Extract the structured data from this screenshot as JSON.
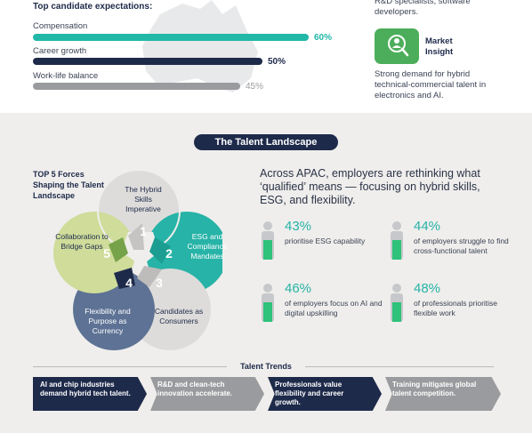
{
  "expectations": {
    "title": "Top candidate expectations:",
    "items": [
      {
        "label": "Compensation",
        "value": 60,
        "display": "60%",
        "color": "#22b8a8"
      },
      {
        "label": "Career growth",
        "value": 50,
        "display": "50%",
        "color": "#1e2a4a"
      },
      {
        "label": "Work-life balance",
        "value": 45,
        "display": "45%",
        "color": "#9a9b9e"
      }
    ]
  },
  "roles_text": "R&D specialists, software developers.",
  "market_insight": {
    "title": "Market Insight",
    "text": "Strong demand for hybrid technical-commercial talent in electronics and AI.",
    "icon": "person-magnifier-icon"
  },
  "landscape": {
    "title": "The Talent Landscape",
    "forces_title": "TOP 5 Forces Shaping the Talent Landscape",
    "forces": [
      {
        "num": "1",
        "label": "The Hybrid Skills Imperative"
      },
      {
        "num": "2",
        "label": "ESG and Compliance Mandates"
      },
      {
        "num": "3",
        "label": "Candidates as Consumers"
      },
      {
        "num": "4",
        "label": "Flexibility and Purpose as Currency"
      },
      {
        "num": "5",
        "label": "Collaboration to Bridge Gaps"
      }
    ],
    "intro": "Across APAC, employers are rethinking what ‘qualified’ means — focusing on hybrid skills, ESG, and flexibility.",
    "stats": [
      {
        "pct": "43%",
        "desc": "prioritise ESG capability",
        "fill": 0.43
      },
      {
        "pct": "44%",
        "desc": "of employers struggle to find cross-functional talent",
        "fill": 0.44
      },
      {
        "pct": "46%",
        "desc": "of employers focus on AI and digital upskilling",
        "fill": 0.46
      },
      {
        "pct": "48%",
        "desc": "of professionals prioritise flexible work",
        "fill": 0.48
      }
    ]
  },
  "trends": {
    "title": "Talent Trends",
    "items": [
      "AI and chip industries demand hybrid tech talent.",
      "R&D and clean-tech innovation accelerate.",
      "Professionals value flexibility and career growth.",
      "Training mitigates global talent competition."
    ]
  }
}
